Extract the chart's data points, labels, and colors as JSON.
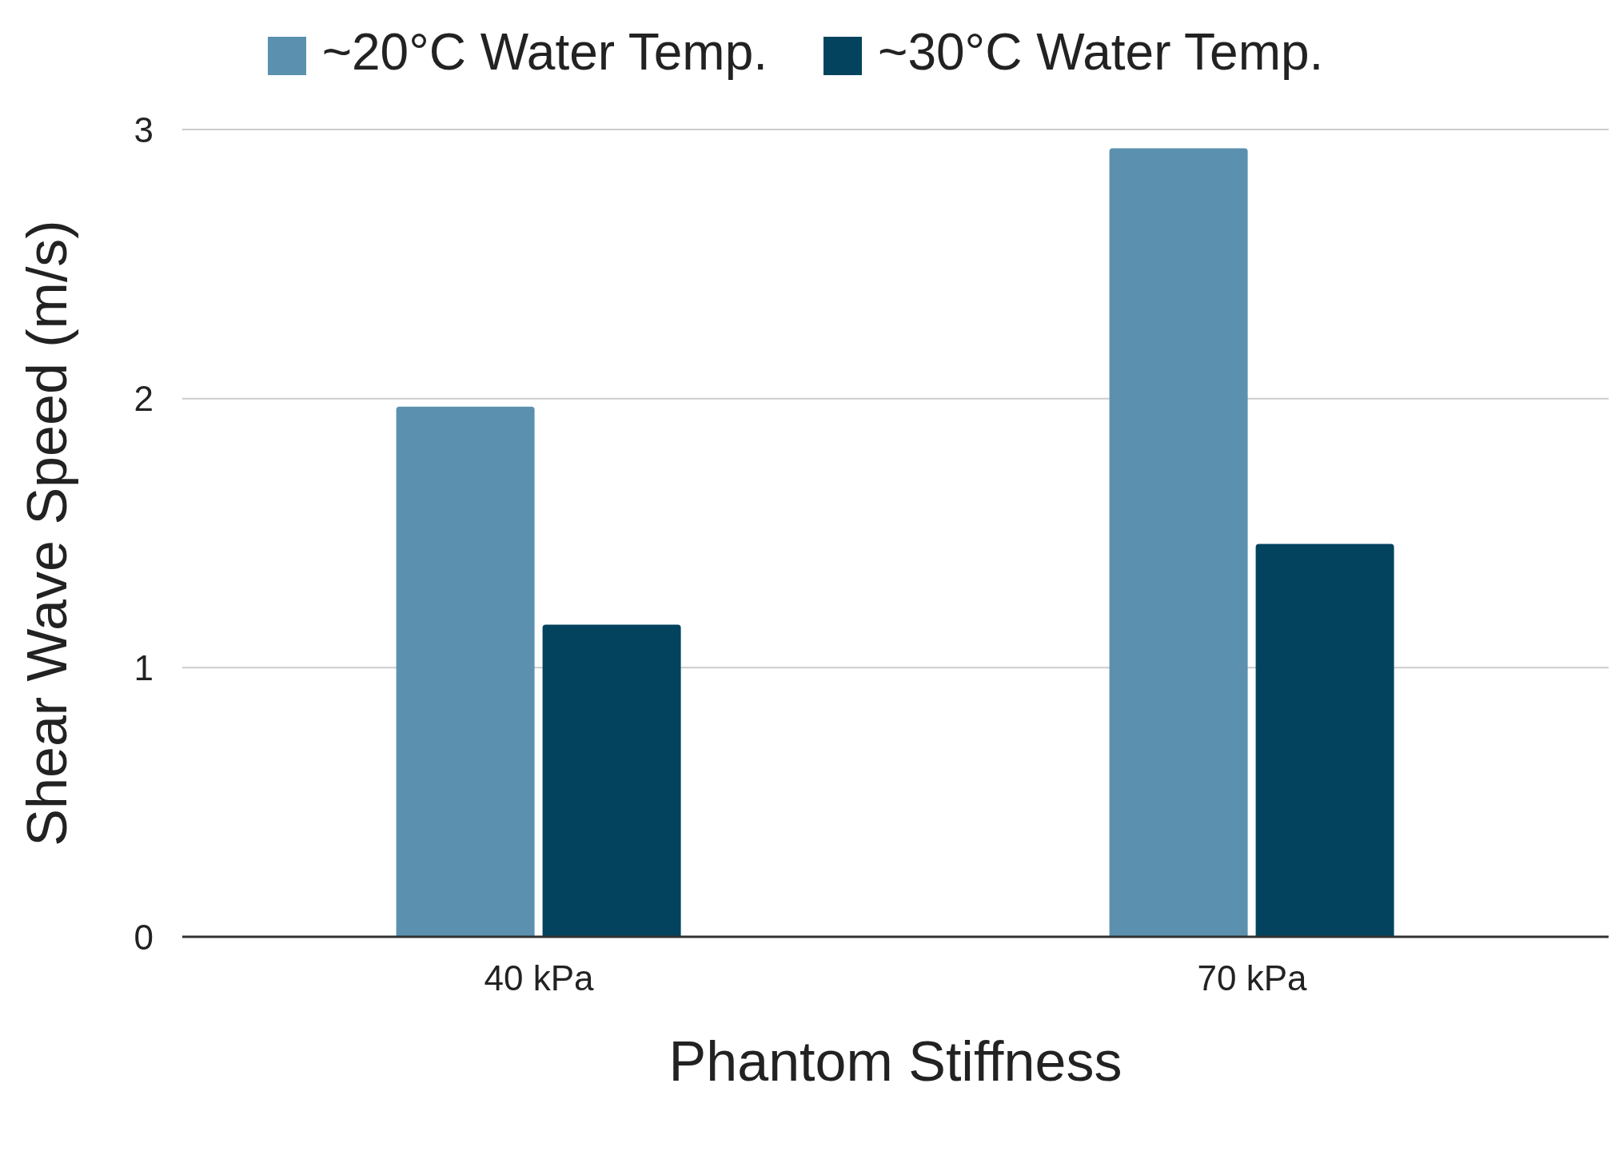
{
  "chart_data": {
    "type": "bar",
    "xlabel": "Phantom Stiffness",
    "ylabel": "Shear Wave Speed (m/s)",
    "categories": [
      "40 kPa",
      "70 kPa"
    ],
    "series": [
      {
        "name": "~20°C Water Temp.",
        "color": "#5b91ae",
        "values": [
          1.97,
          2.93
        ]
      },
      {
        "name": "~30°C Water Temp.",
        "color": "#03435e",
        "values": [
          1.16,
          1.46
        ]
      }
    ],
    "ylim": [
      0,
      3
    ],
    "yticks": [
      0,
      1,
      2,
      3
    ],
    "grid": "y",
    "legend": "top"
  }
}
